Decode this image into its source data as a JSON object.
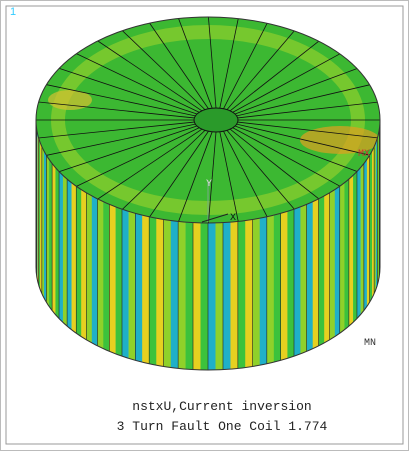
{
  "window_number": "1",
  "labels": {
    "max": "MX",
    "min": "MN",
    "axis_y": "Y",
    "axis_x": "X"
  },
  "caption": {
    "line1": "nstxU,Current inversion",
    "line2": "3 Turn Fault One Coil 1.774"
  }
}
